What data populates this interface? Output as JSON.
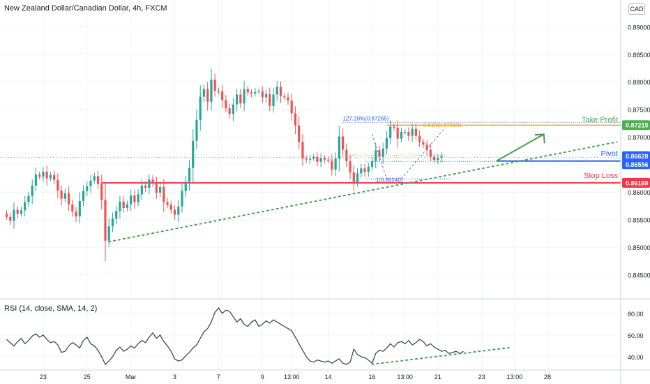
{
  "header": {
    "title": "New Zealand Dollar/Canadian Dollar, 4h, FXCM",
    "currency": "CAD"
  },
  "rsi": {
    "title": "RSI (14, close, SMA, 14, 2)",
    "ticks": [
      "80.00",
      "60.00",
      "40.00"
    ],
    "tick_values": [
      80,
      60,
      40
    ],
    "range": [
      29,
      87
    ],
    "values": [
      56,
      53,
      50,
      54,
      57,
      52,
      55,
      59,
      61,
      58,
      60,
      56,
      53,
      54,
      51,
      44,
      45,
      50,
      53,
      51,
      48,
      55,
      58,
      52,
      50,
      46,
      40,
      33,
      36,
      40,
      46,
      49,
      45,
      47,
      50,
      48,
      52,
      55,
      53,
      58,
      62,
      57,
      60,
      54,
      50,
      45,
      38,
      36,
      37,
      41,
      44,
      48,
      51,
      57,
      63,
      66,
      72,
      81,
      85,
      80,
      83,
      82,
      77,
      72,
      75,
      70,
      68,
      72,
      74,
      68,
      70,
      73,
      71,
      74,
      72,
      70,
      68,
      66,
      64,
      58,
      52,
      46,
      40,
      36,
      35,
      37,
      36,
      35,
      36,
      34,
      36,
      38,
      34,
      33,
      35,
      47,
      42,
      40,
      39,
      37,
      34,
      43,
      46,
      45,
      48,
      52,
      49,
      53,
      54,
      52,
      55,
      51,
      53,
      56,
      54,
      50,
      52,
      49,
      47,
      45,
      46,
      43,
      44,
      45,
      43,
      45
    ],
    "trendline": {
      "x": [
        100,
        126
      ],
      "y": [
        33,
        47
      ]
    }
  },
  "chart_data": {
    "type": "candlestick",
    "title": "New Zealand Dollar/Canadian Dollar, 4h, FXCM",
    "yrange": [
      0.8442,
      0.8913
    ],
    "ylabel": "CAD",
    "price_ticks": [
      "0.89000",
      "0.88500",
      "0.88000",
      "0.87500",
      "0.87000",
      "0.86500",
      "0.86000",
      "0.85500",
      "0.85000",
      "0.84500"
    ],
    "price_tick_values": [
      0.89,
      0.885,
      0.88,
      0.875,
      0.87,
      0.865,
      0.86,
      0.855,
      0.85,
      0.845
    ],
    "x_ticks": [
      {
        "label": "23",
        "i": 10
      },
      {
        "label": "25",
        "i": 22
      },
      {
        "label": "Mar",
        "i": 34
      },
      {
        "label": "3",
        "i": 46
      },
      {
        "label": "7",
        "i": 58
      },
      {
        "label": "9",
        "i": 70
      },
      {
        "label": "13:00",
        "i": 78
      },
      {
        "label": "14",
        "i": 88
      },
      {
        "label": "16",
        "i": 100
      },
      {
        "label": "13:00",
        "i": 109
      },
      {
        "label": "21",
        "i": 118
      },
      {
        "label": "23",
        "i": 130
      },
      {
        "label": "13:00",
        "i": 139
      },
      {
        "label": "28",
        "i": 148
      }
    ],
    "close": [
      0.8555,
      0.8548,
      0.8568,
      0.8561,
      0.8567,
      0.8582,
      0.8593,
      0.8612,
      0.8632,
      0.8628,
      0.8637,
      0.8625,
      0.8631,
      0.8622,
      0.8603,
      0.8588,
      0.8598,
      0.8578,
      0.8565,
      0.8556,
      0.8584,
      0.8602,
      0.8611,
      0.8621,
      0.8629,
      0.8615,
      0.8586,
      0.8512,
      0.8538,
      0.8552,
      0.8566,
      0.8583,
      0.8571,
      0.8578,
      0.8594,
      0.8582,
      0.8596,
      0.8612,
      0.8608,
      0.8623,
      0.8616,
      0.8599,
      0.8609,
      0.8582,
      0.8577,
      0.8568,
      0.8559,
      0.8574,
      0.8602,
      0.8619,
      0.8644,
      0.8693,
      0.8731,
      0.8773,
      0.8787,
      0.8764,
      0.8804,
      0.8784,
      0.8783,
      0.8767,
      0.8752,
      0.8742,
      0.8759,
      0.8777,
      0.8761,
      0.8787,
      0.8781,
      0.8779,
      0.8782,
      0.8783,
      0.8772,
      0.8778,
      0.8756,
      0.8777,
      0.8791,
      0.8774,
      0.8772,
      0.8766,
      0.8743,
      0.8721,
      0.8691,
      0.8661,
      0.8659,
      0.8661,
      0.8664,
      0.8655,
      0.8662,
      0.8659,
      0.8657,
      0.8641,
      0.8661,
      0.8701,
      0.8677,
      0.8656,
      0.8636,
      0.8618,
      0.8634,
      0.8643,
      0.8637,
      0.8646,
      0.8656,
      0.8676,
      0.8664,
      0.8679,
      0.8698,
      0.8719,
      0.8717,
      0.8697,
      0.8709,
      0.8709,
      0.8702,
      0.8715,
      0.8702,
      0.8691,
      0.8686,
      0.8677,
      0.8664,
      0.8658,
      0.8662,
      0.8665
    ],
    "levels": [
      {
        "name": "Take Profit",
        "value": 0.87215,
        "label": "0.87215",
        "color": "#4caf50"
      },
      {
        "name": "Pivot",
        "value": 0.86628,
        "label": "0.86628",
        "color": "#2962ff"
      },
      {
        "name": "",
        "value": 0.86556,
        "label": "0.86556",
        "color": "#2962ff"
      },
      {
        "name": "Stop Loss",
        "value": 0.86169,
        "label": "0.86169",
        "color": "#f23645"
      }
    ],
    "fib_labels": [
      {
        "text": "127.20%(0.87265)",
        "value": 0.87265,
        "color": "#2962ff"
      },
      {
        "text": "0.618(0.87169)",
        "value": 0.87169,
        "color": "#ff9800"
      },
      {
        "text": "1(0.86240)",
        "value": 0.8624,
        "color": "#2962ff"
      }
    ],
    "current_line": 0.86628,
    "up_color": "#26a69a",
    "down_color": "#ef5350"
  }
}
